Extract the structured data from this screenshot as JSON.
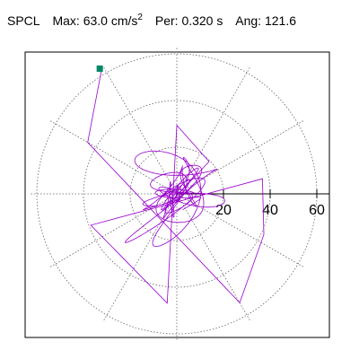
{
  "header": {
    "station": "SPCL",
    "max_label": "Max:",
    "max_value": "63.0",
    "max_unit_base": "cm/s",
    "max_unit_exp": "2",
    "per_label": "Per:",
    "per_value": "0.320",
    "per_unit": "s",
    "ang_label": "Ang:",
    "ang_value": "121.6"
  },
  "chart_data": {
    "type": "line",
    "plot": "polar-orbit",
    "title": "",
    "xlabel": "",
    "ylabel": "",
    "radial_ticks": [
      "20",
      "40",
      "60"
    ],
    "radial_tick_values": [
      20,
      40,
      60
    ],
    "rlim": [
      0,
      63
    ],
    "angular_grid_step_deg": 30,
    "grid": true,
    "grid_style": "dotted",
    "orbit_color": "#9900cc",
    "marker_color": "#008866",
    "max_amplitude": 63.0,
    "max_angle_deg": 121.6,
    "series": [
      {
        "values_description": "acceleration orbit trace",
        "key_points": [
          {
            "r": 63.0,
            "angle_deg": 121.6
          },
          {
            "r": 45,
            "angle_deg": 150
          },
          {
            "r": 55,
            "angle_deg": 300
          },
          {
            "r": 42,
            "angle_deg": 335
          },
          {
            "r": 38,
            "angle_deg": 10
          },
          {
            "r": 40,
            "angle_deg": 200
          },
          {
            "r": 48,
            "angle_deg": 265
          },
          {
            "r": 30,
            "angle_deg": 90
          },
          {
            "r": 20,
            "angle_deg": 45
          },
          {
            "r": 10,
            "angle_deg": 230
          }
        ]
      }
    ]
  }
}
